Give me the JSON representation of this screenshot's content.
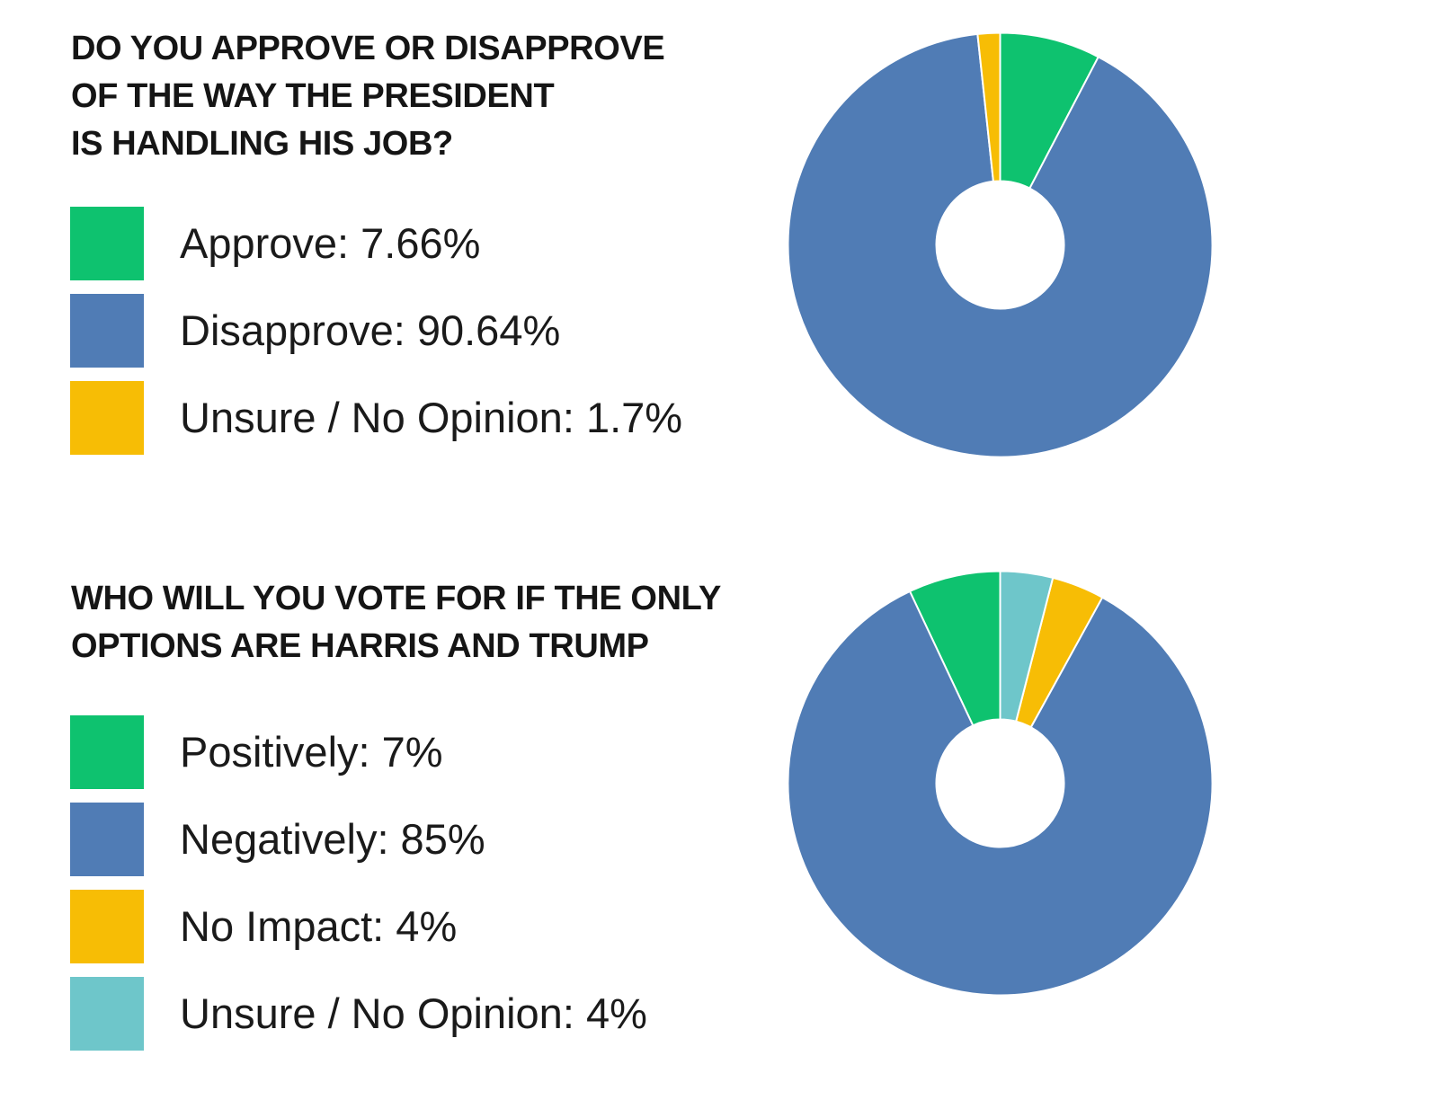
{
  "chart_data": [
    {
      "type": "pie",
      "title": [
        "DO YOU APPROVE OR DISAPPROVE",
        "OF THE WAY THE PRESIDENT",
        "IS HANDLING HIS JOB?"
      ],
      "categories": [
        "Approve",
        "Disapprove",
        "Unsure / No Opinion"
      ],
      "values": [
        7.66,
        90.64,
        1.7
      ],
      "legend_labels": [
        "Approve: 7.66%",
        "Disapprove: 90.64%",
        "Unsure / No Opinion: 1.7%"
      ],
      "colors": [
        "#0ec26f",
        "#507cb5",
        "#f7bd05"
      ],
      "donut": true,
      "start_angle_deg": 0,
      "direction": "clockwise",
      "legend_position": "left"
    },
    {
      "type": "pie",
      "title": [
        "WHO WILL YOU VOTE FOR IF THE ONLY",
        "OPTIONS ARE HARRIS AND TRUMP"
      ],
      "categories": [
        "Positively",
        "Negatively",
        "No Impact",
        "Unsure / No Opinion"
      ],
      "values": [
        7,
        85,
        4,
        4
      ],
      "legend_labels": [
        "Positively: 7%",
        "Negatively: 85%",
        "No Impact: 4%",
        "Unsure / No Opinion: 4%"
      ],
      "colors": [
        "#0ec26f",
        "#507cb5",
        "#f7bd05",
        "#6ec6ca"
      ],
      "donut": true,
      "start_angle_deg": 0,
      "direction": "counterclockwise",
      "legend_position": "left"
    }
  ]
}
